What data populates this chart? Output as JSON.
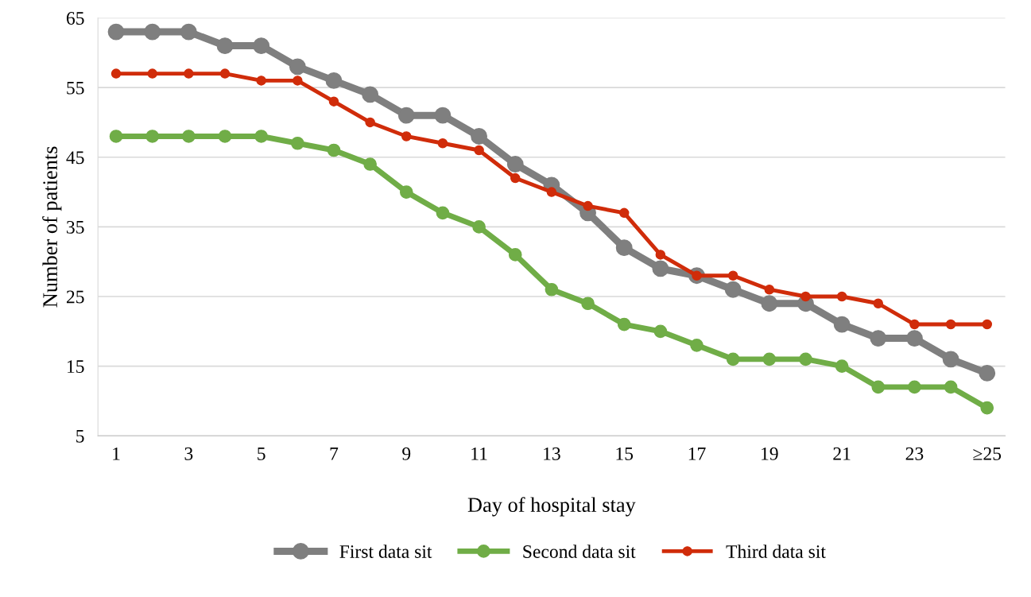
{
  "chart_data": {
    "type": "line",
    "xlabel": "Day of hospital stay",
    "ylabel": "Number of patients",
    "categories": [
      "1",
      null,
      "3",
      null,
      "5",
      null,
      "7",
      null,
      "9",
      null,
      "11",
      null,
      "13",
      null,
      "15",
      null,
      "17",
      null,
      "19",
      null,
      "21",
      null,
      "23",
      null,
      "≥25"
    ],
    "series": [
      {
        "name": "First data sit",
        "color": "#7f7f7f",
        "values": [
          63,
          63,
          63,
          61,
          61,
          58,
          56,
          54,
          51,
          51,
          48,
          44,
          41,
          37,
          32,
          29,
          28,
          26,
          24,
          24,
          21,
          19,
          19,
          16,
          14
        ]
      },
      {
        "name": "Second data sit",
        "color": "#70ad47",
        "values": [
          48,
          48,
          48,
          48,
          48,
          47,
          46,
          44,
          40,
          37,
          35,
          31,
          26,
          24,
          21,
          20,
          18,
          16,
          16,
          16,
          15,
          12,
          12,
          12,
          9
        ]
      },
      {
        "name": "Third data sit",
        "color": "#d02c0a",
        "values": [
          57,
          57,
          57,
          57,
          56,
          56,
          53,
          50,
          48,
          47,
          46,
          42,
          40,
          38,
          37,
          31,
          28,
          28,
          26,
          25,
          25,
          24,
          21,
          21,
          21
        ]
      }
    ],
    "ylim": [
      5,
      65
    ],
    "yticks": [
      5,
      15,
      25,
      35,
      45,
      55,
      65
    ],
    "grid": "y",
    "legend": "bottom",
    "marker": "circle",
    "line_style": "solid"
  }
}
